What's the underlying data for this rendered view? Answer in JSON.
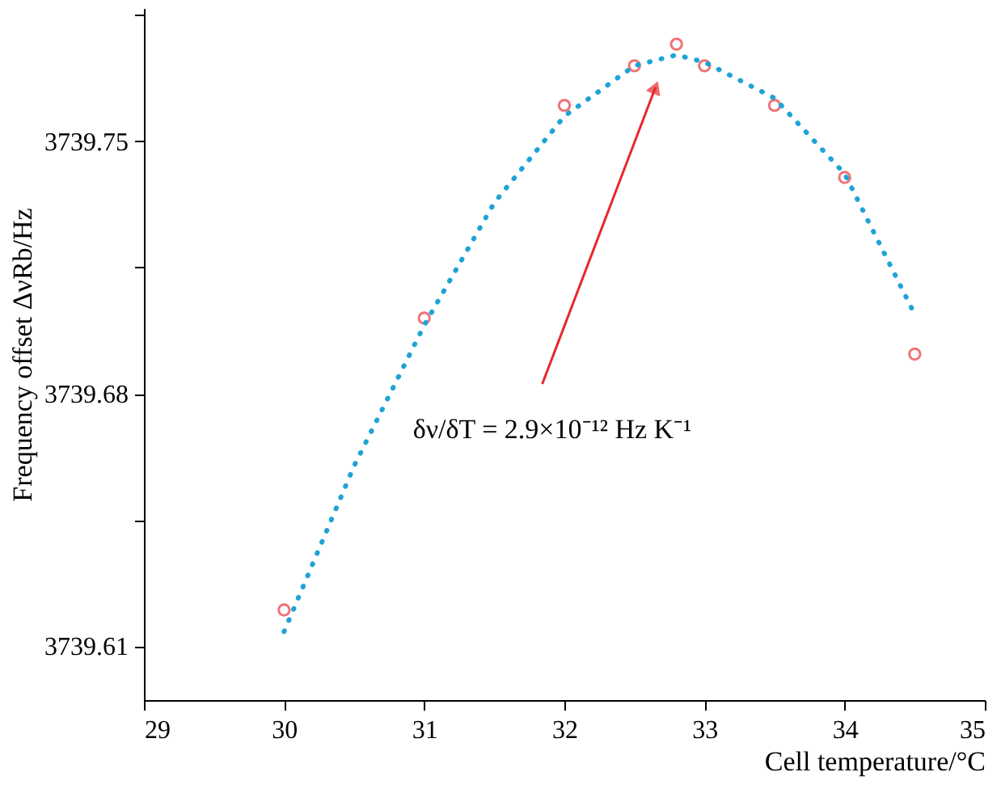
{
  "chart_data": {
    "type": "scatter",
    "xlabel": "Cell temperature/°C",
    "ylabel": "Frequency offset ΔνRb/Hz",
    "xlim": [
      29,
      35
    ],
    "xticks": [
      29,
      30,
      31,
      32,
      33,
      34,
      35
    ],
    "ylim": [
      3739.595,
      3739.787
    ],
    "yticks": [
      3739.61,
      {
        "value": 3739.645,
        "label": null
      },
      3739.68,
      {
        "value": 3739.715,
        "label": null
      },
      3739.75,
      {
        "value": 3739.785,
        "label": null
      }
    ],
    "grid": false,
    "legend": false,
    "series": [
      {
        "type": "scatter",
        "marker": "circle",
        "color": "#e8383d",
        "x": [
          30,
          31,
          32,
          32.5,
          32.8,
          33,
          33.5,
          34,
          34.5
        ],
        "values": [
          3739.62,
          3739.701,
          3739.76,
          3739.771,
          3739.777,
          3739.771,
          3739.76,
          3739.74,
          3739.691
        ]
      },
      {
        "type": "line",
        "line_style": "dotted",
        "marker": "none",
        "color": "#1fa3d6",
        "x": [
          30,
          30.5,
          31,
          31.5,
          32,
          32.5,
          32.8,
          33,
          33.5,
          34,
          34.5
        ],
        "values": [
          3739.614,
          3739.66,
          3739.699,
          3739.733,
          3739.757,
          3739.771,
          3739.774,
          3739.772,
          3739.762,
          3739.741,
          3739.702
        ]
      }
    ],
    "annotations": [
      {
        "text": "δν/δT = 2.9×10⁻¹² Hz K⁻¹",
        "x": 32.65,
        "y": 3739.765
      }
    ]
  }
}
